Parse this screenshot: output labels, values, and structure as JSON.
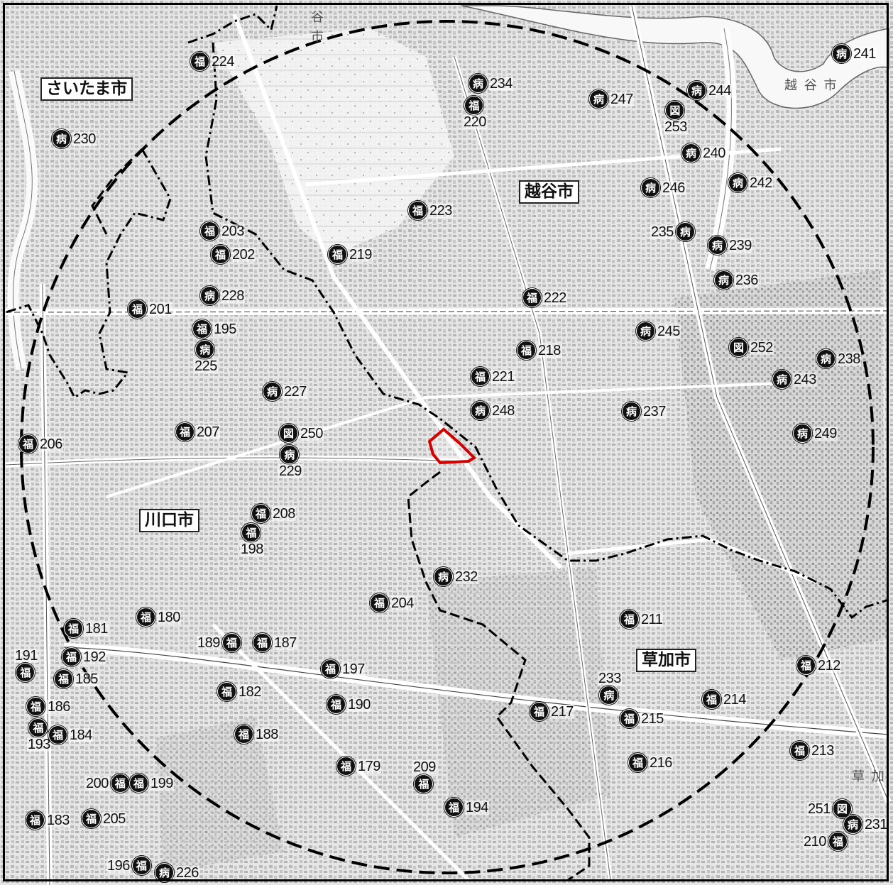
{
  "title_labels": {
    "saitama": "さいたま市",
    "koshigaya": "越谷市",
    "kawaguchi": "川口市",
    "soka": "草加市"
  },
  "ghost_labels": {
    "koshigaya_corner": "越 谷 市",
    "soka_edge": "草 加",
    "top_edge": "谷 市"
  },
  "icon_glyphs": {
    "welfare": "福",
    "hospital": "病",
    "library": "図"
  },
  "colors": {
    "site_outline": "#d40000",
    "badge": "#111111",
    "boundary": "#000000"
  },
  "markers": [
    {
      "num": "224",
      "type": "welfare"
    },
    {
      "num": "230",
      "type": "hospital"
    },
    {
      "num": "234",
      "type": "hospital"
    },
    {
      "num": "220",
      "type": "welfare"
    },
    {
      "num": "247",
      "type": "hospital"
    },
    {
      "num": "244",
      "type": "hospital"
    },
    {
      "num": "241",
      "type": "hospital"
    },
    {
      "num": "253",
      "type": "library"
    },
    {
      "num": "240",
      "type": "hospital"
    },
    {
      "num": "242",
      "type": "hospital"
    },
    {
      "num": "246",
      "type": "hospital"
    },
    {
      "num": "223",
      "type": "welfare"
    },
    {
      "num": "203",
      "type": "welfare"
    },
    {
      "num": "202",
      "type": "welfare"
    },
    {
      "num": "219",
      "type": "welfare"
    },
    {
      "num": "235",
      "type": "hospital"
    },
    {
      "num": "239",
      "type": "hospital"
    },
    {
      "num": "236",
      "type": "hospital"
    },
    {
      "num": "228",
      "type": "hospital"
    },
    {
      "num": "222",
      "type": "welfare"
    },
    {
      "num": "201",
      "type": "welfare"
    },
    {
      "num": "195",
      "type": "welfare"
    },
    {
      "num": "225",
      "type": "hospital"
    },
    {
      "num": "245",
      "type": "hospital"
    },
    {
      "num": "218",
      "type": "welfare"
    },
    {
      "num": "252",
      "type": "library"
    },
    {
      "num": "238",
      "type": "hospital"
    },
    {
      "num": "221",
      "type": "welfare"
    },
    {
      "num": "243",
      "type": "hospital"
    },
    {
      "num": "227",
      "type": "hospital"
    },
    {
      "num": "248",
      "type": "hospital"
    },
    {
      "num": "237",
      "type": "hospital"
    },
    {
      "num": "207",
      "type": "welfare"
    },
    {
      "num": "250",
      "type": "library"
    },
    {
      "num": "249",
      "type": "hospital"
    },
    {
      "num": "206",
      "type": "welfare"
    },
    {
      "num": "229",
      "type": "hospital"
    },
    {
      "num": "208",
      "type": "welfare"
    },
    {
      "num": "198",
      "type": "welfare"
    },
    {
      "num": "232",
      "type": "hospital"
    },
    {
      "num": "204",
      "type": "welfare"
    },
    {
      "num": "180",
      "type": "welfare"
    },
    {
      "num": "211",
      "type": "welfare"
    },
    {
      "num": "181",
      "type": "welfare"
    },
    {
      "num": "189",
      "type": "welfare"
    },
    {
      "num": "187",
      "type": "welfare"
    },
    {
      "num": "191",
      "type": "welfare"
    },
    {
      "num": "192",
      "type": "welfare"
    },
    {
      "num": "185",
      "type": "welfare"
    },
    {
      "num": "197",
      "type": "welfare"
    },
    {
      "num": "212",
      "type": "welfare"
    },
    {
      "num": "182",
      "type": "welfare"
    },
    {
      "num": "233",
      "type": "hospital"
    },
    {
      "num": "214",
      "type": "welfare"
    },
    {
      "num": "186",
      "type": "welfare"
    },
    {
      "num": "190",
      "type": "welfare"
    },
    {
      "num": "217",
      "type": "welfare"
    },
    {
      "num": "215",
      "type": "welfare"
    },
    {
      "num": "193",
      "type": "welfare"
    },
    {
      "num": "184",
      "type": "welfare"
    },
    {
      "num": "188",
      "type": "welfare"
    },
    {
      "num": "213",
      "type": "welfare"
    },
    {
      "num": "179",
      "type": "welfare"
    },
    {
      "num": "216",
      "type": "welfare"
    },
    {
      "num": "209",
      "type": "welfare"
    },
    {
      "num": "200",
      "type": "welfare"
    },
    {
      "num": "199",
      "type": "welfare"
    },
    {
      "num": "194",
      "type": "welfare"
    },
    {
      "num": "183",
      "type": "welfare"
    },
    {
      "num": "205",
      "type": "welfare"
    },
    {
      "num": "251",
      "type": "library"
    },
    {
      "num": "231",
      "type": "hospital"
    },
    {
      "num": "210",
      "type": "welfare"
    },
    {
      "num": "196",
      "type": "welfare"
    },
    {
      "num": "226",
      "type": "hospital"
    }
  ]
}
